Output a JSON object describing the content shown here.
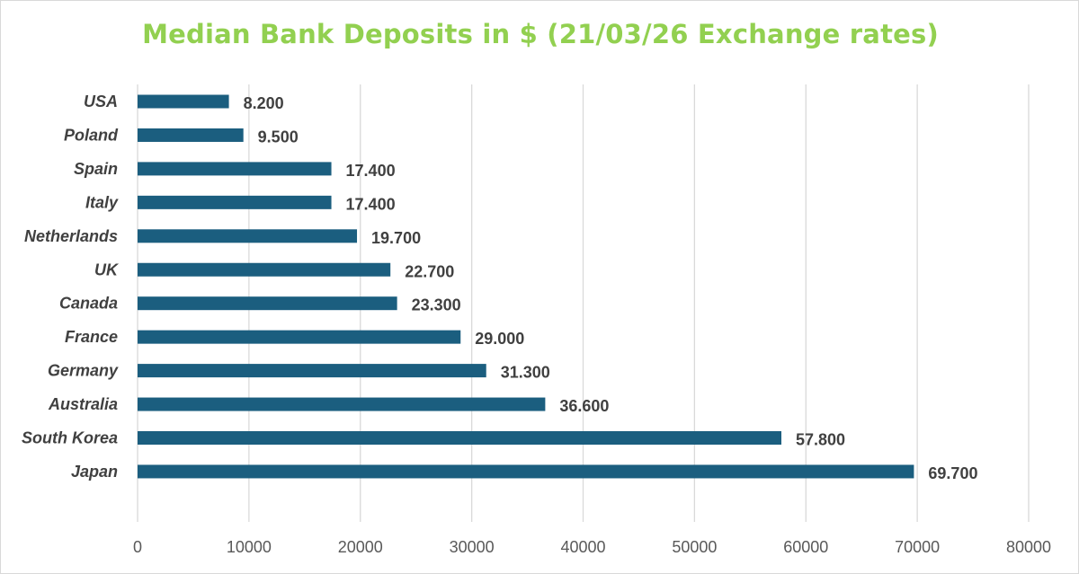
{
  "chart_data": {
    "type": "bar",
    "orientation": "horizontal",
    "title": "Median Bank Deposits in $ (21/03/26 Exchange rates)",
    "categories": [
      "USA",
      "Poland",
      "Spain",
      "Italy",
      "Netherlands",
      "UK",
      "Canada",
      "France",
      "Germany",
      "Australia",
      "South Korea",
      "Japan"
    ],
    "values": [
      8200,
      9500,
      17400,
      17400,
      19700,
      22700,
      23300,
      29000,
      31300,
      36600,
      57800,
      69700
    ],
    "data_labels": [
      "8.200",
      "9.500",
      "17.400",
      "17.400",
      "19.700",
      "22.700",
      "23.300",
      "29.000",
      "31.300",
      "36.600",
      "57.800",
      "69.700"
    ],
    "xlim": [
      0,
      80000
    ],
    "x_ticks": [
      0,
      10000,
      20000,
      30000,
      40000,
      50000,
      60000,
      70000,
      80000
    ],
    "x_tick_labels": [
      "0",
      "10000",
      "20000",
      "30000",
      "40000",
      "50000",
      "60000",
      "70000",
      "80000"
    ],
    "grid": "vertical",
    "legend": "none",
    "colors": {
      "bar": "#1b5e7f",
      "title": "#92d050",
      "grid": "#d9d9d9",
      "text": "#404040"
    }
  }
}
